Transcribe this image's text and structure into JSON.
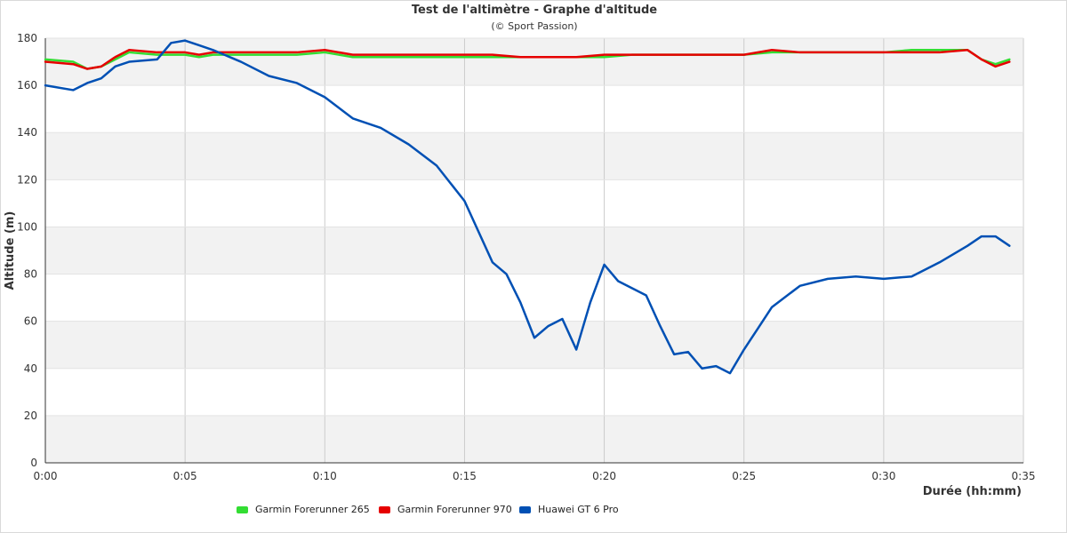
{
  "chart_data": {
    "type": "line",
    "title": "Test de l'altimètre - Graphe d'altitude",
    "subtitle": "(© Sport Passion)",
    "xlabel": "Durée (hh:mm)",
    "ylabel": "Altitude (m)",
    "x_unit": "hh:mm",
    "xlim": [
      "0:00",
      "0:35"
    ],
    "ylim": [
      0,
      180
    ],
    "x_ticks": [
      "0:00",
      "0:05",
      "0:10",
      "0:15",
      "0:20",
      "0:25",
      "0:30",
      "0:35"
    ],
    "y_ticks": [
      "0",
      "20",
      "40",
      "60",
      "80",
      "100",
      "120",
      "140",
      "160",
      "180"
    ],
    "grid": true,
    "legend_position": "bottom",
    "series": [
      {
        "name": "Garmin Forerunner 265",
        "color": "#33dd33",
        "x": [
          "0:00",
          "0:01",
          "0:01:30",
          "0:02",
          "0:02:30",
          "0:03",
          "0:04",
          "0:05",
          "0:05:30",
          "0:06",
          "0:07",
          "0:08",
          "0:09",
          "0:10",
          "0:11",
          "0:12",
          "0:13",
          "0:14",
          "0:15",
          "0:16",
          "0:17",
          "0:18",
          "0:19",
          "0:20",
          "0:21",
          "0:22",
          "0:23",
          "0:24",
          "0:25",
          "0:26",
          "0:27",
          "0:28",
          "0:29",
          "0:30",
          "0:31",
          "0:32",
          "0:33",
          "0:33:30",
          "0:34",
          "0:34:30"
        ],
        "y": [
          171,
          170,
          167,
          168,
          171,
          174,
          173,
          173,
          172,
          173,
          173,
          173,
          173,
          174,
          172,
          172,
          172,
          172,
          172,
          172,
          172,
          172,
          172,
          172,
          173,
          173,
          173,
          173,
          173,
          174,
          174,
          174,
          174,
          174,
          175,
          175,
          175,
          171,
          169,
          171
        ]
      },
      {
        "name": "Garmin Forerunner 970",
        "color": "#e60000",
        "x": [
          "0:00",
          "0:01",
          "0:01:30",
          "0:02",
          "0:02:30",
          "0:03",
          "0:04",
          "0:05",
          "0:05:30",
          "0:06",
          "0:07",
          "0:08",
          "0:09",
          "0:10",
          "0:11",
          "0:12",
          "0:13",
          "0:14",
          "0:15",
          "0:16",
          "0:17",
          "0:18",
          "0:19",
          "0:20",
          "0:21",
          "0:22",
          "0:23",
          "0:24",
          "0:25",
          "0:26",
          "0:27",
          "0:28",
          "0:29",
          "0:30",
          "0:31",
          "0:32",
          "0:33",
          "0:33:30",
          "0:34",
          "0:34:30"
        ],
        "y": [
          170,
          169,
          167,
          168,
          172,
          175,
          174,
          174,
          173,
          174,
          174,
          174,
          174,
          175,
          173,
          173,
          173,
          173,
          173,
          173,
          172,
          172,
          172,
          173,
          173,
          173,
          173,
          173,
          173,
          175,
          174,
          174,
          174,
          174,
          174,
          174,
          175,
          171,
          168,
          170
        ]
      },
      {
        "name": "Huawei GT 6 Pro",
        "color": "#0050b4",
        "x": [
          "0:00",
          "0:01",
          "0:01:30",
          "0:02",
          "0:02:30",
          "0:03",
          "0:04",
          "0:04:30",
          "0:05",
          "0:05:30",
          "0:06",
          "0:07",
          "0:08",
          "0:09",
          "0:10",
          "0:11",
          "0:12",
          "0:13",
          "0:14",
          "0:15",
          "0:16",
          "0:16:30",
          "0:17",
          "0:17:30",
          "0:18",
          "0:18:30",
          "0:19",
          "0:19:30",
          "0:20",
          "0:20:30",
          "0:21",
          "0:21:30",
          "0:22",
          "0:22:30",
          "0:23",
          "0:23:30",
          "0:24",
          "0:24:30",
          "0:25",
          "0:25:30",
          "0:26",
          "0:27",
          "0:28",
          "0:29",
          "0:30",
          "0:31",
          "0:32",
          "0:33",
          "0:33:30",
          "0:34",
          "0:34:30"
        ],
        "y": [
          160,
          158,
          161,
          163,
          168,
          170,
          171,
          178,
          179,
          177,
          175,
          170,
          164,
          161,
          155,
          146,
          142,
          135,
          126,
          111,
          85,
          80,
          68,
          53,
          58,
          61,
          48,
          68,
          84,
          77,
          74,
          71,
          58,
          46,
          47,
          40,
          41,
          38,
          48,
          57,
          66,
          75,
          78,
          79,
          78,
          79,
          85,
          92,
          96,
          96,
          92
        ]
      }
    ]
  }
}
